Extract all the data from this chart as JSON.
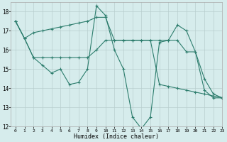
{
  "line1_x": [
    0,
    1,
    2,
    3,
    4,
    5,
    6,
    7,
    8,
    9,
    10,
    11,
    12,
    13,
    14,
    15,
    16,
    17,
    18,
    19,
    20,
    21,
    22,
    23
  ],
  "line1_y": [
    17.5,
    16.6,
    16.9,
    17.0,
    17.1,
    17.2,
    17.3,
    17.4,
    17.5,
    17.7,
    17.7,
    16.5,
    16.5,
    16.5,
    16.5,
    16.5,
    14.2,
    14.1,
    14.0,
    13.9,
    13.8,
    13.7,
    13.6,
    13.5
  ],
  "line2_x": [
    0,
    1,
    2,
    3,
    4,
    5,
    6,
    7,
    8,
    9,
    10,
    11,
    12,
    13,
    14,
    15,
    16,
    17,
    18,
    19,
    20,
    21,
    22,
    23
  ],
  "line2_y": [
    17.5,
    16.6,
    15.6,
    15.2,
    14.8,
    15.0,
    14.2,
    14.3,
    15.0,
    18.3,
    17.8,
    16.0,
    15.0,
    12.5,
    11.9,
    12.5,
    16.4,
    16.5,
    17.3,
    17.0,
    15.9,
    14.5,
    13.7,
    13.5
  ],
  "line3_x": [
    0,
    1,
    2,
    3,
    4,
    5,
    6,
    7,
    8,
    9,
    10,
    11,
    12,
    13,
    14,
    15,
    16,
    17,
    18,
    19,
    20,
    21,
    22,
    23
  ],
  "line3_y": [
    17.5,
    16.6,
    15.6,
    15.6,
    15.6,
    15.6,
    15.6,
    15.6,
    15.6,
    16.0,
    16.5,
    16.5,
    16.5,
    16.5,
    16.5,
    16.5,
    16.5,
    16.5,
    16.5,
    15.9,
    15.9,
    13.9,
    13.5,
    13.5
  ],
  "color": "#2d7d6d",
  "bg_color": "#d6ecec",
  "grid_color": "#b8cece",
  "xlabel": "Humidex (Indice chaleur)",
  "xlim": [
    -0.5,
    23
  ],
  "ylim": [
    12,
    18.5
  ],
  "yticks": [
    12,
    13,
    14,
    15,
    16,
    17,
    18
  ],
  "xticks": [
    0,
    1,
    2,
    3,
    4,
    5,
    6,
    7,
    8,
    9,
    10,
    11,
    12,
    13,
    14,
    15,
    16,
    17,
    18,
    19,
    20,
    21,
    22,
    23
  ]
}
